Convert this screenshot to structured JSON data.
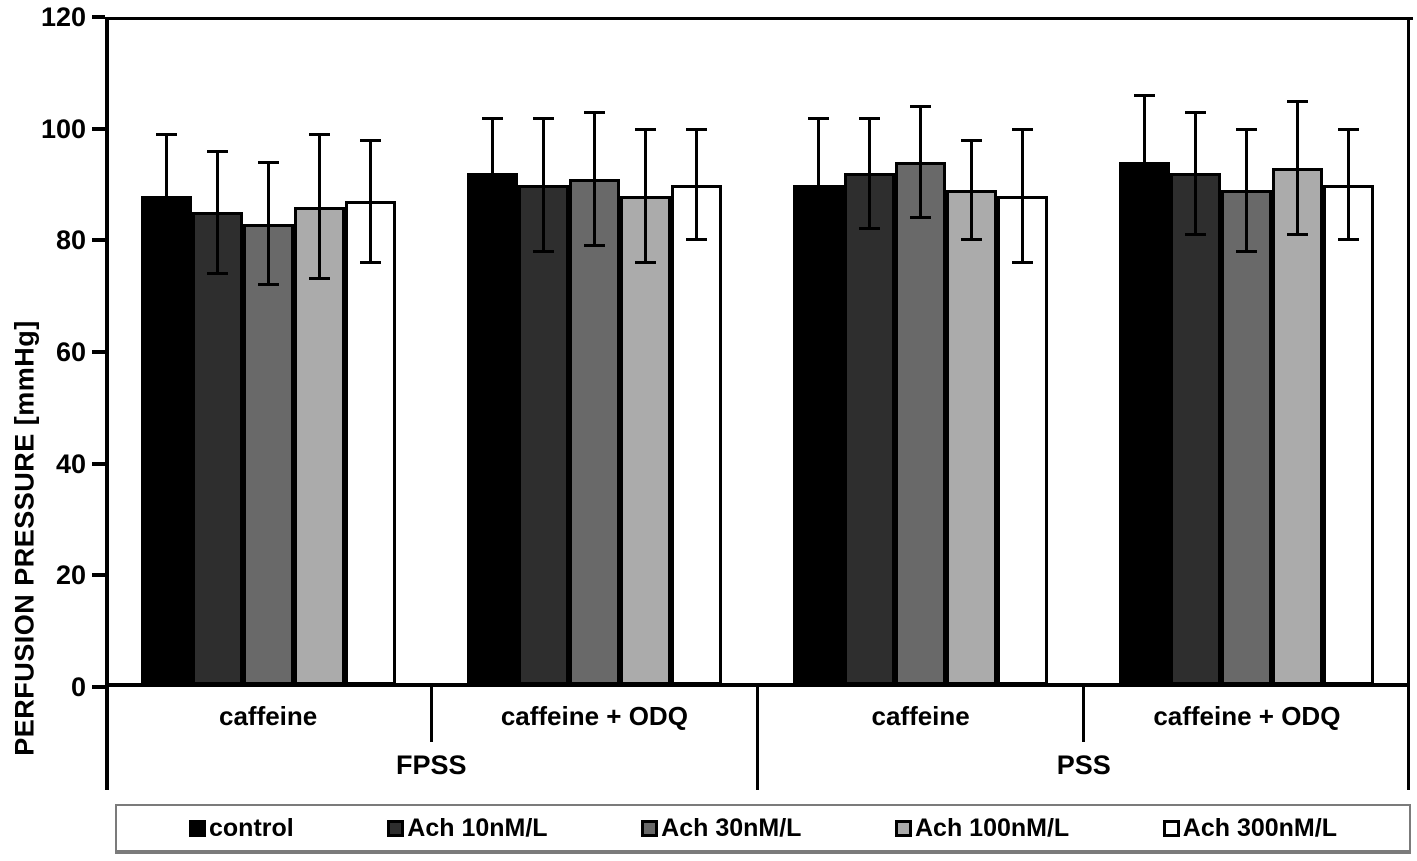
{
  "chart_data": {
    "type": "bar",
    "title": "",
    "xlabel": "",
    "ylabel": "PERFUSION PRESSURE [mmHg]",
    "ylim": [
      0,
      120
    ],
    "ytick_step": 20,
    "yticks": [
      0,
      20,
      40,
      60,
      80,
      100,
      120
    ],
    "grid": false,
    "error_bars": true,
    "legend_position": "bottom",
    "background_color": "#ffffff",
    "bar_border_color": "#000000",
    "error_bar_color": "#000000",
    "categories": [
      "caffeine",
      "caffeine + ODQ",
      "caffeine",
      "caffeine + ODQ"
    ],
    "panels": [
      "FPSS",
      "PSS"
    ],
    "panel_of_category": [
      0,
      0,
      1,
      1
    ],
    "series": [
      {
        "name": "control",
        "color": "#000000",
        "values": [
          88,
          92,
          90,
          94
        ],
        "errors": [
          11,
          10,
          12,
          12
        ]
      },
      {
        "name": "Ach 10nM/L",
        "color": "#2e2e2e",
        "values": [
          85,
          90,
          92,
          92
        ],
        "errors": [
          11,
          12,
          10,
          11
        ]
      },
      {
        "name": "Ach 30nM/L",
        "color": "#696969",
        "values": [
          83,
          91,
          94,
          89
        ],
        "errors": [
          11,
          12,
          10,
          11
        ]
      },
      {
        "name": "Ach 100nM/L",
        "color": "#ababab",
        "values": [
          86,
          88,
          89,
          93
        ],
        "errors": [
          13,
          12,
          9,
          12
        ]
      },
      {
        "name": "Ach 300nM/L",
        "color": "#ffffff",
        "values": [
          87,
          90,
          88,
          90
        ],
        "errors": [
          11,
          10,
          12,
          10
        ]
      }
    ]
  }
}
